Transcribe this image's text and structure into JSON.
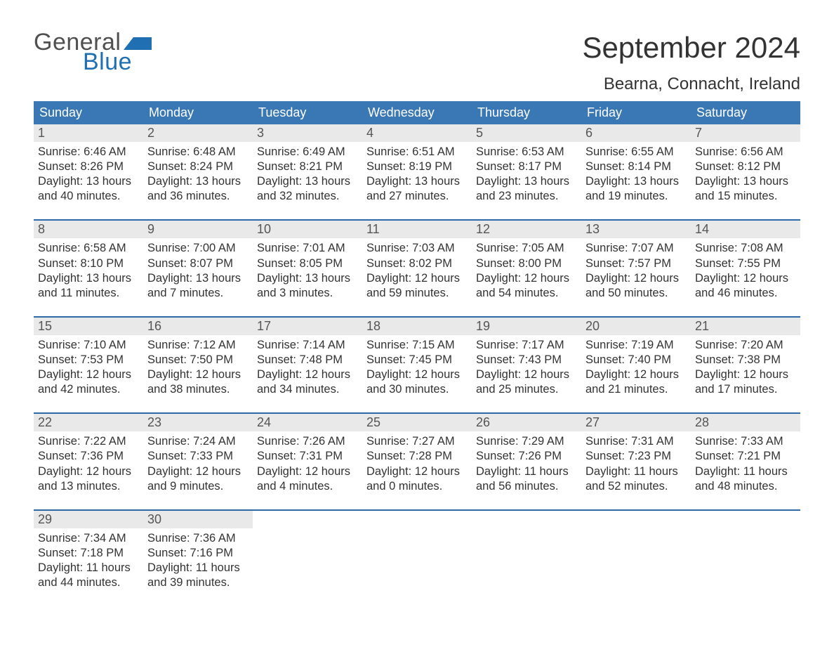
{
  "brand": {
    "line1": "General",
    "line2": "Blue"
  },
  "title": "September 2024",
  "location": "Bearna, Connacht, Ireland",
  "colors": {
    "header_blue": "#3a78b5",
    "week_divider": "#2f6aa8",
    "daynum_bg": "#e9e9e9",
    "brand_blue": "#1f6fb2",
    "text": "#3a3a3a",
    "background": "#ffffff"
  },
  "fonts": {
    "family": "Arial",
    "title_size_pt": 32,
    "location_size_pt": 18,
    "weekday_size_pt": 14,
    "body_size_pt": 12
  },
  "weekdays": [
    "Sunday",
    "Monday",
    "Tuesday",
    "Wednesday",
    "Thursday",
    "Friday",
    "Saturday"
  ],
  "labels": {
    "sunrise": "Sunrise",
    "sunset": "Sunset",
    "daylight": "Daylight"
  },
  "calendar": {
    "type": "table",
    "columns": 7,
    "first_weekday": "Sunday",
    "leading_blanks": 0,
    "days": [
      {
        "n": 1,
        "sunrise": "6:46 AM",
        "sunset": "8:26 PM",
        "daylight": "13 hours and 40 minutes."
      },
      {
        "n": 2,
        "sunrise": "6:48 AM",
        "sunset": "8:24 PM",
        "daylight": "13 hours and 36 minutes."
      },
      {
        "n": 3,
        "sunrise": "6:49 AM",
        "sunset": "8:21 PM",
        "daylight": "13 hours and 32 minutes."
      },
      {
        "n": 4,
        "sunrise": "6:51 AM",
        "sunset": "8:19 PM",
        "daylight": "13 hours and 27 minutes."
      },
      {
        "n": 5,
        "sunrise": "6:53 AM",
        "sunset": "8:17 PM",
        "daylight": "13 hours and 23 minutes."
      },
      {
        "n": 6,
        "sunrise": "6:55 AM",
        "sunset": "8:14 PM",
        "daylight": "13 hours and 19 minutes."
      },
      {
        "n": 7,
        "sunrise": "6:56 AM",
        "sunset": "8:12 PM",
        "daylight": "13 hours and 15 minutes."
      },
      {
        "n": 8,
        "sunrise": "6:58 AM",
        "sunset": "8:10 PM",
        "daylight": "13 hours and 11 minutes."
      },
      {
        "n": 9,
        "sunrise": "7:00 AM",
        "sunset": "8:07 PM",
        "daylight": "13 hours and 7 minutes."
      },
      {
        "n": 10,
        "sunrise": "7:01 AM",
        "sunset": "8:05 PM",
        "daylight": "13 hours and 3 minutes."
      },
      {
        "n": 11,
        "sunrise": "7:03 AM",
        "sunset": "8:02 PM",
        "daylight": "12 hours and 59 minutes."
      },
      {
        "n": 12,
        "sunrise": "7:05 AM",
        "sunset": "8:00 PM",
        "daylight": "12 hours and 54 minutes."
      },
      {
        "n": 13,
        "sunrise": "7:07 AM",
        "sunset": "7:57 PM",
        "daylight": "12 hours and 50 minutes."
      },
      {
        "n": 14,
        "sunrise": "7:08 AM",
        "sunset": "7:55 PM",
        "daylight": "12 hours and 46 minutes."
      },
      {
        "n": 15,
        "sunrise": "7:10 AM",
        "sunset": "7:53 PM",
        "daylight": "12 hours and 42 minutes."
      },
      {
        "n": 16,
        "sunrise": "7:12 AM",
        "sunset": "7:50 PM",
        "daylight": "12 hours and 38 minutes."
      },
      {
        "n": 17,
        "sunrise": "7:14 AM",
        "sunset": "7:48 PM",
        "daylight": "12 hours and 34 minutes."
      },
      {
        "n": 18,
        "sunrise": "7:15 AM",
        "sunset": "7:45 PM",
        "daylight": "12 hours and 30 minutes."
      },
      {
        "n": 19,
        "sunrise": "7:17 AM",
        "sunset": "7:43 PM",
        "daylight": "12 hours and 25 minutes."
      },
      {
        "n": 20,
        "sunrise": "7:19 AM",
        "sunset": "7:40 PM",
        "daylight": "12 hours and 21 minutes."
      },
      {
        "n": 21,
        "sunrise": "7:20 AM",
        "sunset": "7:38 PM",
        "daylight": "12 hours and 17 minutes."
      },
      {
        "n": 22,
        "sunrise": "7:22 AM",
        "sunset": "7:36 PM",
        "daylight": "12 hours and 13 minutes."
      },
      {
        "n": 23,
        "sunrise": "7:24 AM",
        "sunset": "7:33 PM",
        "daylight": "12 hours and 9 minutes."
      },
      {
        "n": 24,
        "sunrise": "7:26 AM",
        "sunset": "7:31 PM",
        "daylight": "12 hours and 4 minutes."
      },
      {
        "n": 25,
        "sunrise": "7:27 AM",
        "sunset": "7:28 PM",
        "daylight": "12 hours and 0 minutes."
      },
      {
        "n": 26,
        "sunrise": "7:29 AM",
        "sunset": "7:26 PM",
        "daylight": "11 hours and 56 minutes."
      },
      {
        "n": 27,
        "sunrise": "7:31 AM",
        "sunset": "7:23 PM",
        "daylight": "11 hours and 52 minutes."
      },
      {
        "n": 28,
        "sunrise": "7:33 AM",
        "sunset": "7:21 PM",
        "daylight": "11 hours and 48 minutes."
      },
      {
        "n": 29,
        "sunrise": "7:34 AM",
        "sunset": "7:18 PM",
        "daylight": "11 hours and 44 minutes."
      },
      {
        "n": 30,
        "sunrise": "7:36 AM",
        "sunset": "7:16 PM",
        "daylight": "11 hours and 39 minutes."
      }
    ]
  }
}
